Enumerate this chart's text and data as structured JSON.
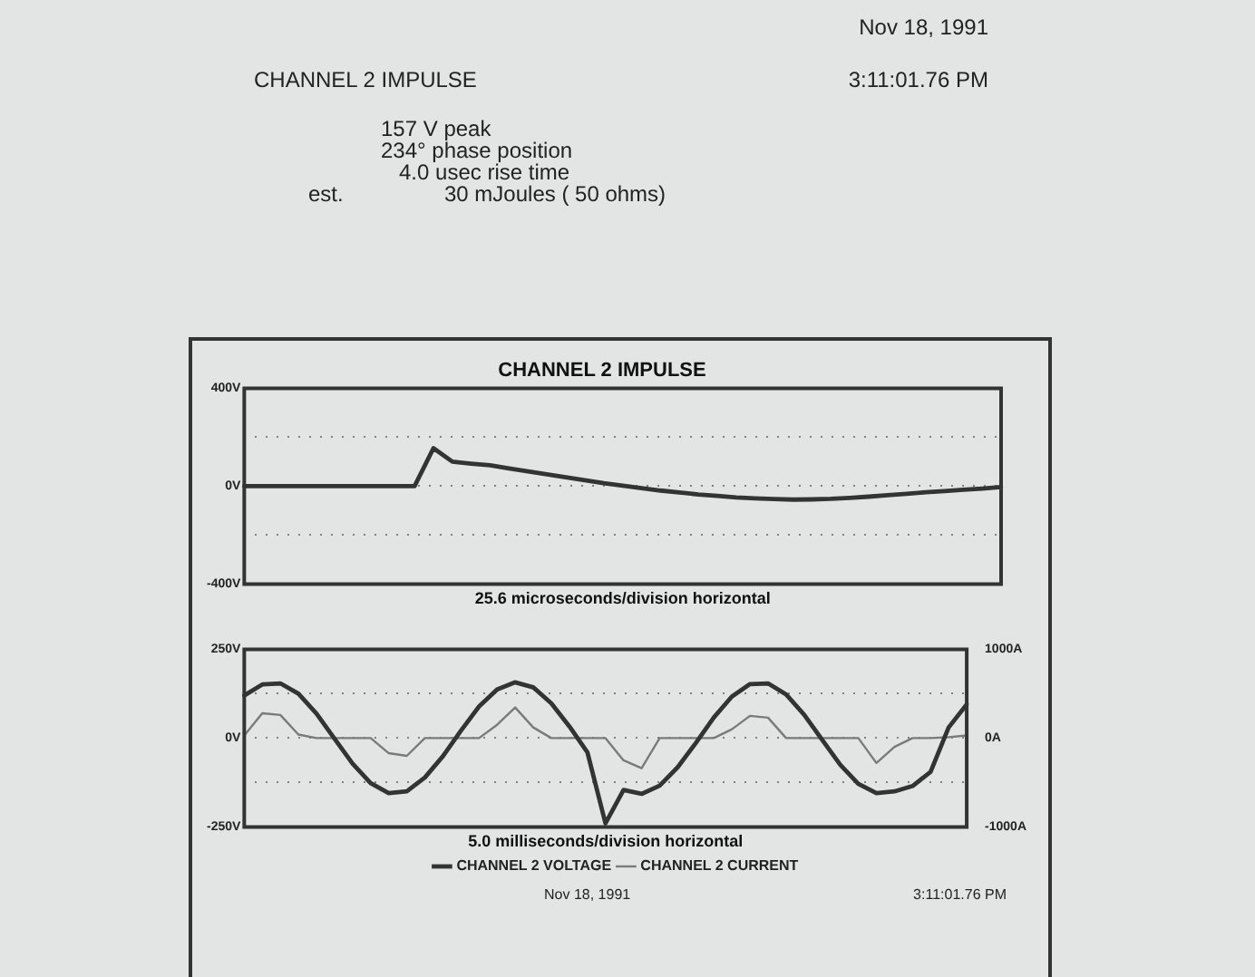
{
  "chart_data": [
    {
      "type": "line",
      "title": "CHANNEL 2 IMPULSE",
      "xlabel": "25.6 microseconds/division horizontal",
      "annotations": [
        "Nov 18, 1991",
        "CHANNEL 2 IMPULSE",
        "3:11:01.76 PM",
        "157 V peak",
        "234° phase position",
        "4.0 usec rise time",
        "est.",
        "30 mJoules ( 50 ohms)"
      ],
      "categories": [
        null,
        null,
        null,
        null,
        null,
        null,
        null,
        null,
        null,
        null,
        null,
        null,
        null,
        null,
        null,
        null,
        null,
        null,
        null,
        null,
        null,
        null,
        null,
        null,
        null,
        null,
        null,
        null,
        null,
        null,
        null,
        null,
        null,
        null,
        null,
        null,
        null,
        null,
        null,
        null,
        null
      ],
      "series": [
        {
          "color": "#333333",
          "values": [
            0,
            0,
            0,
            0,
            0,
            0,
            0,
            0,
            0,
            0,
            155,
            100,
            92,
            85,
            72,
            60,
            48,
            36,
            24,
            12,
            2,
            -8,
            -18,
            -26,
            -34,
            -40,
            -46,
            -50,
            -53,
            -55,
            -54,
            -52,
            -48,
            -43,
            -37,
            -31,
            -25,
            -20,
            -15,
            -10,
            -4
          ]
        }
      ],
      "ylim": [
        -400,
        400
      ],
      "yticks": [
        {
          "value": -400,
          "label": "-400V"
        },
        {
          "value": -200,
          "label": null
        },
        {
          "value": 0,
          "label": "0V"
        },
        {
          "value": 200,
          "label": null
        },
        {
          "value": 400,
          "label": "400V"
        }
      ],
      "grid": "y",
      "legend": false,
      "tick_labels": "y",
      "marker": "none",
      "line_style": "solid"
    },
    {
      "type": "line",
      "xlabel": "5.0 milliseconds/division horizontal",
      "annotations": [
        "Nov 18, 1991",
        "3:11:01.76 PM"
      ],
      "categories": [
        null,
        null,
        null,
        null,
        null,
        null,
        null,
        null,
        null,
        null,
        null,
        null,
        null,
        null,
        null,
        null,
        null,
        null,
        null,
        null,
        null,
        null,
        null,
        null,
        null,
        null,
        null,
        null,
        null,
        null,
        null,
        null,
        null,
        null,
        null,
        null,
        null,
        null,
        null,
        null,
        null
      ],
      "series": [
        {
          "name": "CHANNEL 2 VOLTAGE",
          "color": "#333333",
          "values": [
            120,
            151,
            154,
            125,
            69,
            -2,
            -72,
            -127,
            -155,
            -150,
            -111,
            -51,
            21,
            89,
            137,
            157,
            143,
            98,
            33,
            -40,
            -240,
            -146,
            -157,
            -134,
            -82,
            -14,
            58,
            117,
            152,
            154,
            123,
            66,
            -5,
            -75,
            -129,
            -155,
            -150,
            -135,
            -95,
            30,
            95
          ]
        },
        {
          "name": "CHANNEL 2 CURRENT",
          "color": "#7a7a7a",
          "axis": "y2",
          "values": [
            30,
            280,
            260,
            40,
            0,
            0,
            0,
            0,
            -170,
            -200,
            0,
            0,
            0,
            0,
            150,
            345,
            120,
            0,
            0,
            0,
            0,
            -250,
            -340,
            0,
            0,
            0,
            0,
            100,
            250,
            230,
            0,
            0,
            0,
            0,
            0,
            -280,
            -100,
            0,
            0,
            10,
            30
          ]
        }
      ],
      "ylim": [
        -250,
        250
      ],
      "yticks": [
        {
          "value": -250,
          "label": "-250V"
        },
        {
          "value": -125,
          "label": null
        },
        {
          "value": 0,
          "label": "0V"
        },
        {
          "value": 125,
          "label": null
        },
        {
          "value": 250,
          "label": "250V"
        }
      ],
      "y2lim": [
        -1000,
        1000
      ],
      "y2ticks": [
        {
          "value": -1000,
          "label": "-1000A"
        },
        {
          "value": 0,
          "label": "0A"
        },
        {
          "value": 1000,
          "label": "1000A"
        }
      ],
      "grid": "y",
      "legend": "bottom",
      "tick_labels": "y",
      "marker": "none",
      "line_style": "solid"
    }
  ]
}
